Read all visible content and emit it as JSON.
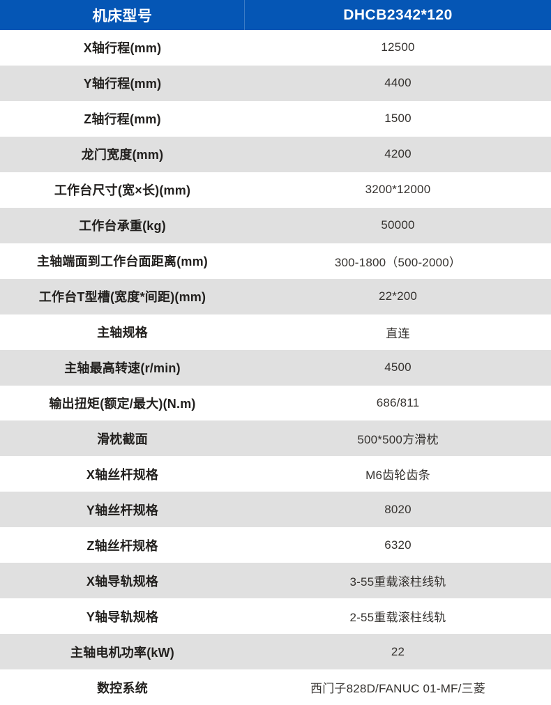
{
  "colors": {
    "header_bg": "#0556B5",
    "header_text": "#FFFFFF",
    "row_bg": "#FFFFFF",
    "row_alt_bg": "#E0E0E0",
    "label_text": "#22201E",
    "value_text": "#35322F"
  },
  "chart_data": {
    "type": "table",
    "title": "机床型号 DHCB2342*120 技术参数表",
    "legend_position": "none",
    "header": {
      "label": "机床型号",
      "value": "DHCB2342*120"
    },
    "rows": [
      {
        "label": "X轴行程(mm)",
        "value": "12500"
      },
      {
        "label": "Y轴行程(mm)",
        "value": "4400"
      },
      {
        "label": "Z轴行程(mm)",
        "value": "1500"
      },
      {
        "label": "龙门宽度(mm)",
        "value": "4200"
      },
      {
        "label": "工作台尺寸(宽×长)(mm)",
        "value": "3200*12000"
      },
      {
        "label": "工作台承重(kg)",
        "value": "50000"
      },
      {
        "label": "主轴端面到工作台面距离(mm)",
        "value": "300-1800（500-2000）"
      },
      {
        "label": "工作台T型槽(宽度*间距)(mm)",
        "value": "22*200"
      },
      {
        "label": "主轴规格",
        "value": "直连"
      },
      {
        "label": "主轴最高转速(r/min)",
        "value": "4500"
      },
      {
        "label": "输出扭矩(额定/最大)(N.m)",
        "value": "686/811"
      },
      {
        "label": "滑枕截面",
        "value": "500*500方滑枕"
      },
      {
        "label": "X轴丝杆规格",
        "value": "M6齿轮齿条"
      },
      {
        "label": "Y轴丝杆规格",
        "value": "8020"
      },
      {
        "label": "Z轴丝杆规格",
        "value": "6320"
      },
      {
        "label": "X轴导轨规格",
        "value": "3-55重载滚柱线轨"
      },
      {
        "label": "Y轴导轨规格",
        "value": "2-55重载滚柱线轨"
      },
      {
        "label": "主轴电机功率(kW)",
        "value": "22"
      },
      {
        "label": "数控系统",
        "value": "西门子828D/FANUC 01-MF/三菱"
      }
    ]
  }
}
